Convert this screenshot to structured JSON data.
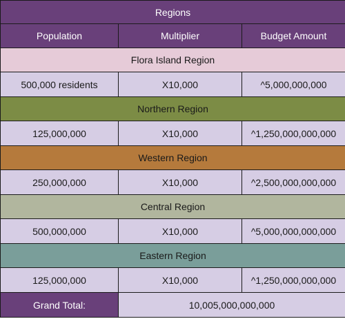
{
  "title": "Regions",
  "headers": [
    "Population",
    "Multiplier",
    "Budget Amount"
  ],
  "regions": [
    {
      "name": "Flora Island Region",
      "band_color": "#e6cbd8",
      "population": "500,000 residents",
      "multiplier": "X10,000",
      "budget": "^5,000,000,000"
    },
    {
      "name": "Northern Region",
      "band_color": "#7c8c45",
      "population": "125,000,000",
      "multiplier": "X10,000",
      "budget": "^1,250,000,000,000"
    },
    {
      "name": "Western Region",
      "band_color": "#b57a3c",
      "population": "250,000,000",
      "multiplier": "X10,000",
      "budget": "^2,500,000,000,000"
    },
    {
      "name": "Central Region",
      "band_color": "#b1b69e",
      "population": "500,000,000",
      "multiplier": "X10,000",
      "budget": "^5,000,000,000,000"
    },
    {
      "name": "Eastern Region",
      "band_color": "#7a9e9a",
      "population": "125,000,000",
      "multiplier": "X10,000",
      "budget": "^1,250,000,000,000"
    }
  ],
  "grand_total": {
    "label": "Grand Total:",
    "value": "10,005,000,000,000"
  },
  "colors": {
    "header_purple": "#69407a",
    "data_lavender": "#d6cde4"
  }
}
